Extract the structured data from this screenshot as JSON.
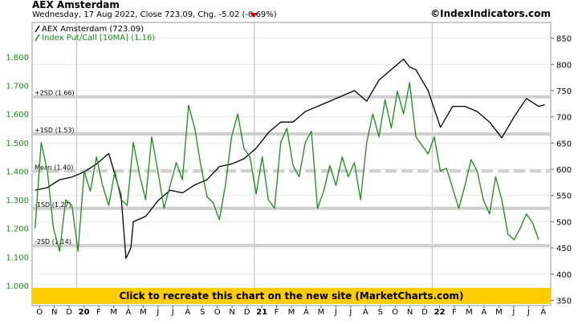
{
  "header": {
    "title": "AEX Amsterdam",
    "subtitle": "Wednesday, 17 Aug 2022, Close 723.09, Chg. -5.02 (-0.69%)",
    "change_direction": "down-triangle-icon",
    "brand": "©IndexIndicators.com"
  },
  "legend": {
    "items": [
      {
        "label": "AEX Amsterdam (723.09)",
        "color": "#000000"
      },
      {
        "label": "Index Put/Call [10MA] (1.16)",
        "color": "#1a8a1a"
      }
    ]
  },
  "banner": {
    "text": "Click to recreate this chart on the new site (MarketCharts.com)",
    "color": "#ffcc00"
  },
  "chart_data": {
    "type": "line",
    "left_axis": {
      "ticks": [
        "1.000",
        "1.100",
        "1.200",
        "1.300",
        "1.400",
        "1.500",
        "1.600",
        "1.700",
        "1.800"
      ],
      "range": [
        0.93,
        1.92
      ]
    },
    "right_axis": {
      "ticks": [
        "350",
        "400",
        "450",
        "500",
        "550",
        "600",
        "650",
        "700",
        "750",
        "800",
        "850"
      ],
      "range": [
        340,
        880
      ]
    },
    "x_ticks": [
      "O",
      "N",
      "D",
      "20",
      "F",
      "M",
      "A",
      "M",
      "J",
      "J",
      "A",
      "S",
      "O",
      "N",
      "D",
      "21",
      "F",
      "M",
      "A",
      "M",
      "J",
      "J",
      "A",
      "S",
      "O",
      "N",
      "D",
      "22",
      "F",
      "M",
      "A",
      "M",
      "J",
      "J",
      "A"
    ],
    "x_bold_ticks": [
      "20",
      "21",
      "22"
    ],
    "reference_lines": [
      {
        "label": "+2SD (1.66)",
        "value": 1.66
      },
      {
        "label": "+1SD (1.53)",
        "value": 1.53
      },
      {
        "label": "Mean (1.40)",
        "value": 1.4,
        "dashed": true
      },
      {
        "label": "-1SD (1.27)",
        "value": 1.27
      },
      {
        "label": "-2SD (1.14)",
        "value": 1.14
      }
    ],
    "series": [
      {
        "name": "AEX Amsterdam (723.09)",
        "axis": "right",
        "color": "#000000",
        "points": [
          [
            0,
            560
          ],
          [
            1,
            565
          ],
          [
            2,
            580
          ],
          [
            3,
            585
          ],
          [
            4,
            595
          ],
          [
            5,
            610
          ],
          [
            6,
            630
          ],
          [
            7,
            550
          ],
          [
            7.4,
            430
          ],
          [
            7.8,
            450
          ],
          [
            8,
            500
          ],
          [
            9,
            510
          ],
          [
            10,
            540
          ],
          [
            11,
            560
          ],
          [
            12,
            555
          ],
          [
            13,
            570
          ],
          [
            14,
            580
          ],
          [
            15,
            605
          ],
          [
            16,
            610
          ],
          [
            17,
            620
          ],
          [
            18,
            640
          ],
          [
            19,
            670
          ],
          [
            20,
            690
          ],
          [
            21,
            690
          ],
          [
            22,
            710
          ],
          [
            23,
            720
          ],
          [
            24,
            730
          ],
          [
            25,
            740
          ],
          [
            26,
            750
          ],
          [
            27,
            730
          ],
          [
            28,
            770
          ],
          [
            29,
            790
          ],
          [
            30,
            810
          ],
          [
            30.5,
            795
          ],
          [
            31,
            790
          ],
          [
            31.5,
            770
          ],
          [
            32,
            750
          ],
          [
            33,
            680
          ],
          [
            34,
            720
          ],
          [
            35,
            720
          ],
          [
            36,
            710
          ],
          [
            37,
            690
          ],
          [
            38,
            660
          ],
          [
            39,
            700
          ],
          [
            40,
            735
          ],
          [
            41,
            720
          ],
          [
            41.5,
            723
          ]
        ]
      },
      {
        "name": "Index Put/Call [10MA] (1.16)",
        "axis": "left",
        "color": "#1a8a1a",
        "points": [
          [
            0,
            1.2
          ],
          [
            0.5,
            1.5
          ],
          [
            1,
            1.4
          ],
          [
            1.5,
            1.2
          ],
          [
            2,
            1.12
          ],
          [
            2.5,
            1.3
          ],
          [
            3,
            1.28
          ],
          [
            3.5,
            1.12
          ],
          [
            4,
            1.4
          ],
          [
            4.5,
            1.33
          ],
          [
            5,
            1.45
          ],
          [
            5.5,
            1.35
          ],
          [
            6,
            1.28
          ],
          [
            6.5,
            1.4
          ],
          [
            7,
            1.3
          ],
          [
            7.5,
            1.28
          ],
          [
            8,
            1.5
          ],
          [
            8.5,
            1.39
          ],
          [
            9,
            1.3
          ],
          [
            9.5,
            1.52
          ],
          [
            10,
            1.4
          ],
          [
            10.5,
            1.27
          ],
          [
            11,
            1.35
          ],
          [
            11.5,
            1.43
          ],
          [
            12,
            1.37
          ],
          [
            12.5,
            1.63
          ],
          [
            13,
            1.55
          ],
          [
            13.5,
            1.42
          ],
          [
            14,
            1.31
          ],
          [
            14.5,
            1.29
          ],
          [
            15,
            1.23
          ],
          [
            15.5,
            1.35
          ],
          [
            16,
            1.52
          ],
          [
            16.5,
            1.6
          ],
          [
            17,
            1.48
          ],
          [
            17.5,
            1.45
          ],
          [
            18,
            1.32
          ],
          [
            18.5,
            1.45
          ],
          [
            19,
            1.3
          ],
          [
            19.5,
            1.27
          ],
          [
            20,
            1.5
          ],
          [
            20.5,
            1.55
          ],
          [
            21,
            1.42
          ],
          [
            21.5,
            1.38
          ],
          [
            22,
            1.5
          ],
          [
            22.5,
            1.54
          ],
          [
            23,
            1.27
          ],
          [
            23.5,
            1.33
          ],
          [
            24,
            1.42
          ],
          [
            24.5,
            1.35
          ],
          [
            25,
            1.45
          ],
          [
            25.5,
            1.38
          ],
          [
            26,
            1.43
          ],
          [
            26.5,
            1.3
          ],
          [
            27,
            1.5
          ],
          [
            27.5,
            1.6
          ],
          [
            28,
            1.52
          ],
          [
            28.5,
            1.65
          ],
          [
            29,
            1.55
          ],
          [
            29.5,
            1.68
          ],
          [
            30,
            1.6
          ],
          [
            30.5,
            1.71
          ],
          [
            31,
            1.52
          ],
          [
            31.5,
            1.49
          ],
          [
            32,
            1.46
          ],
          [
            32.5,
            1.52
          ],
          [
            33,
            1.4
          ],
          [
            33.5,
            1.41
          ],
          [
            34,
            1.34
          ],
          [
            34.5,
            1.27
          ],
          [
            35,
            1.35
          ],
          [
            35.5,
            1.44
          ],
          [
            36,
            1.4
          ],
          [
            36.5,
            1.3
          ],
          [
            37,
            1.25
          ],
          [
            37.5,
            1.38
          ],
          [
            38,
            1.3
          ],
          [
            38.5,
            1.18
          ],
          [
            39,
            1.16
          ],
          [
            39.5,
            1.2
          ],
          [
            40,
            1.25
          ],
          [
            40.5,
            1.22
          ],
          [
            41,
            1.16
          ]
        ]
      }
    ]
  }
}
